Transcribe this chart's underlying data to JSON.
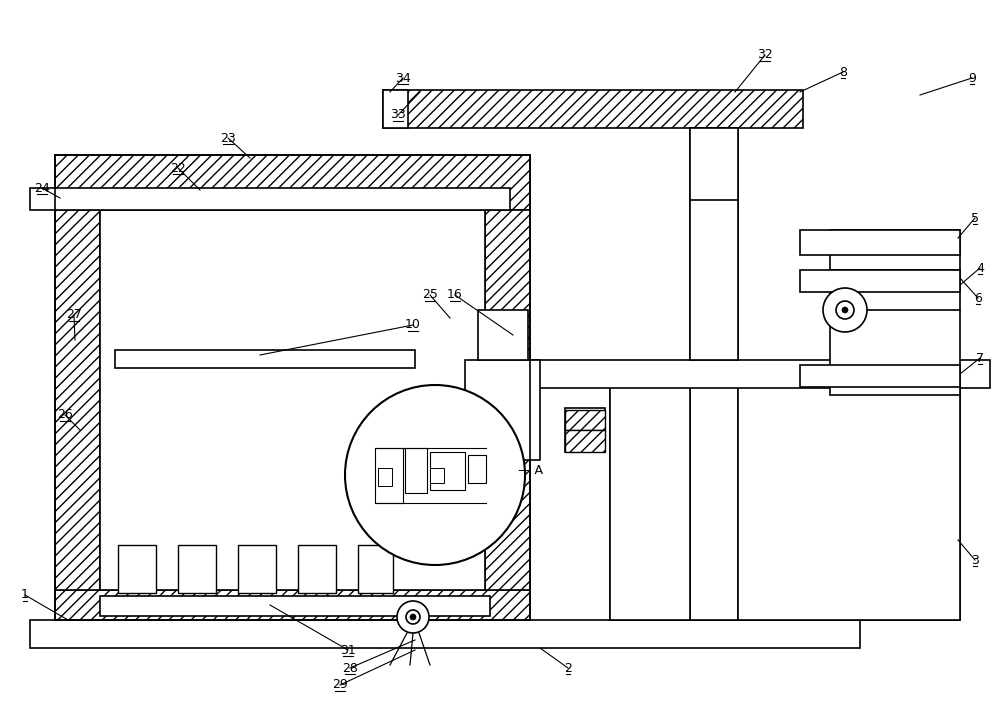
{
  "figsize": [
    10.0,
    7.27
  ],
  "dpi": 100,
  "bg": "#ffffff"
}
